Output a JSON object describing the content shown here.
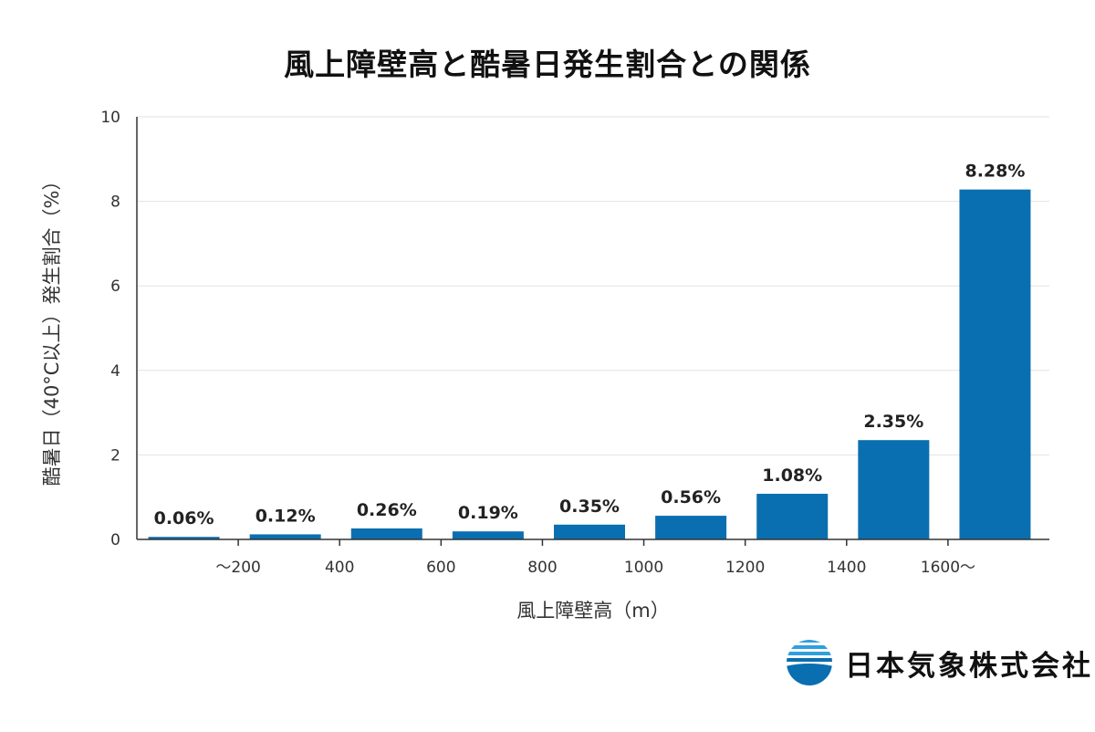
{
  "chart_data": {
    "type": "bar",
    "title": "風上障壁高と酷暑日発生割合との関係",
    "xlabel": "風上障壁高（m）",
    "ylabel": "酷暑日（40°C以上）発生割合（%）",
    "x_tick_labels": [
      "～200",
      "400",
      "600",
      "800",
      "1000",
      "1200",
      "1400",
      "1600～"
    ],
    "values": [
      0.06,
      0.12,
      0.26,
      0.19,
      0.35,
      0.56,
      1.08,
      2.35,
      8.28
    ],
    "value_labels": [
      "0.06%",
      "0.12%",
      "0.26%",
      "0.19%",
      "0.35%",
      "0.56%",
      "1.08%",
      "2.35%",
      "8.28%"
    ],
    "ylim": [
      0,
      10
    ],
    "y_ticks": [
      0,
      2,
      4,
      6,
      8,
      10
    ],
    "grid": true,
    "bar_color": "#0a6fb0"
  },
  "logo": {
    "company_name": "日本気象株式会社",
    "colors": {
      "blue": "#0a6fb0",
      "light_blue": "#2f9fe0",
      "star": "#1a57a8"
    }
  }
}
